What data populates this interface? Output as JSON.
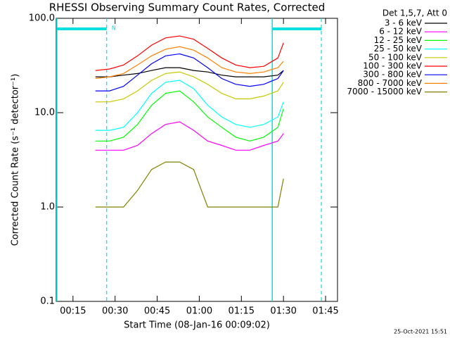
{
  "chart_data": {
    "type": "line",
    "title": "RHESSI Observing Summary Count Rates, Corrected",
    "xlabel": "Start Time (08-Jan-16 00:09:02)",
    "ylabel": "Corrected Count Rate (s⁻¹ detector⁻¹)",
    "legend_title": "Det 1,5,7, Att 0",
    "footer": "25-Oct-2021 15:51",
    "log_y": true,
    "xlim": [
      "00:09:02",
      "01:49:15"
    ],
    "xticks": [
      "00:15",
      "00:30",
      "00:45",
      "01:00",
      "01:15",
      "01:30",
      "01:45"
    ],
    "ylim": [
      0.1,
      100
    ],
    "yticks": [
      0.1,
      {
        "value": 1,
        "label": "1.0"
      },
      {
        "value": 10,
        "label": "10.0"
      },
      {
        "value": 100,
        "label": "100.0"
      }
    ],
    "eclipse_color": "#00e0e0",
    "eclipse_intervals": [
      [
        "00:09:15",
        "00:27"
      ],
      [
        "01:26",
        "01:43:30"
      ]
    ],
    "annotations": [
      "N"
    ],
    "x": [
      "00:23",
      "00:28",
      "00:33",
      "00:38",
      "00:43",
      "00:48",
      "00:53",
      "00:58",
      "01:03",
      "01:08",
      "01:13",
      "01:18",
      "01:23",
      "01:28",
      "01:30"
    ],
    "series": [
      {
        "name": "3 - 6 keV",
        "color": "#000000",
        "values": [
          24,
          24,
          25,
          26,
          28,
          30,
          30,
          28,
          27,
          25,
          24,
          24,
          24,
          25,
          28
        ]
      },
      {
        "name": "6 - 12 keV",
        "color": "#ff00ff",
        "values": [
          4,
          4,
          4,
          4.5,
          6,
          7.5,
          8,
          6.5,
          5,
          4.5,
          4,
          4,
          4.5,
          5,
          6
        ]
      },
      {
        "name": "12 - 25 keV",
        "color": "#00ff00",
        "values": [
          5,
          5,
          5.5,
          7.5,
          12,
          16,
          17,
          13,
          9,
          7,
          5.5,
          5,
          5.5,
          7,
          11
        ]
      },
      {
        "name": "25 - 50 keV",
        "color": "#00ffff",
        "values": [
          6.5,
          6.5,
          7,
          10,
          16,
          21,
          22,
          18,
          12,
          9,
          7.5,
          7,
          7.5,
          9,
          13
        ]
      },
      {
        "name": "50 - 100 keV",
        "color": "#c8c800",
        "values": [
          13,
          13,
          14,
          17,
          22,
          26,
          27,
          24,
          20,
          16,
          14,
          14,
          15,
          17,
          21
        ]
      },
      {
        "name": "100 - 300 keV",
        "color": "#ff0000",
        "values": [
          28,
          29,
          32,
          40,
          52,
          62,
          65,
          60,
          48,
          38,
          32,
          30,
          31,
          38,
          55
        ]
      },
      {
        "name": "300 - 800 keV",
        "color": "#0000ff",
        "values": [
          17,
          17,
          19,
          25,
          33,
          40,
          42,
          38,
          30,
          23,
          20,
          19,
          20,
          23,
          28
        ]
      },
      {
        "name": "800 - 7000 keV",
        "color": "#ff8000",
        "values": [
          23,
          24,
          26,
          32,
          40,
          47,
          50,
          46,
          38,
          30,
          27,
          26,
          27,
          30,
          35
        ]
      },
      {
        "name": "7000 - 15000 keV",
        "color": "#808000",
        "values": [
          1,
          1,
          1,
          1.5,
          2.5,
          3,
          3,
          2.5,
          1,
          1,
          1,
          1,
          1,
          1,
          2
        ]
      }
    ]
  }
}
